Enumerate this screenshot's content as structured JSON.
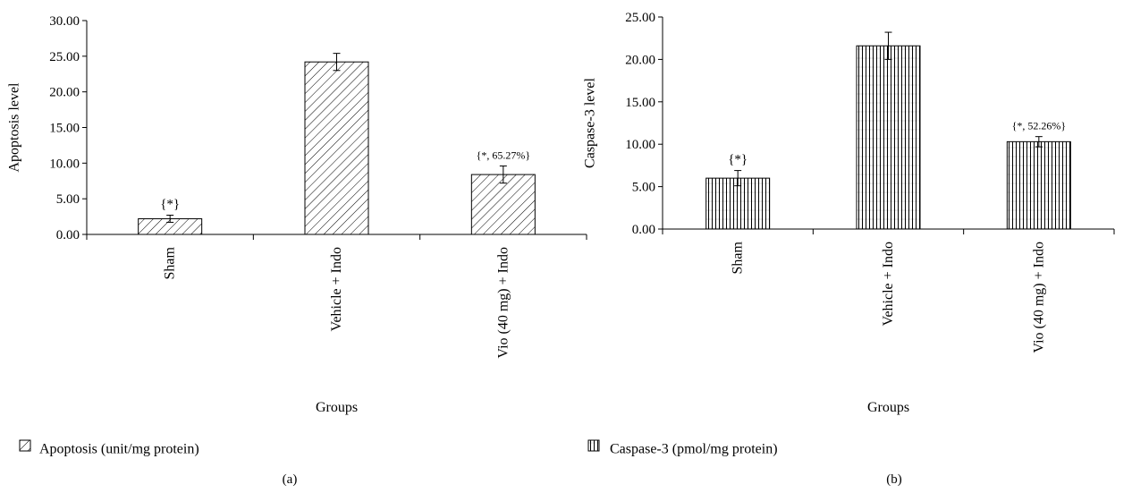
{
  "chart_data": [
    {
      "panel_label": "(a)",
      "type": "bar",
      "ylabel": "Apoptosis level",
      "xlabel": "Groups",
      "ylim": [
        0,
        30
      ],
      "ytick_step": 5,
      "ytick_labels": [
        "0.00",
        "5.00",
        "10.00",
        "15.00",
        "20.00",
        "25.00",
        "30.00"
      ],
      "categories": [
        "Sham",
        "Vehicle + Indo",
        "Vio (40 mg) + Indo"
      ],
      "series": [
        {
          "name": "Apoptosis (unit/mg protein)",
          "values": [
            2.2,
            24.2,
            8.4
          ],
          "errors": [
            0.5,
            1.2,
            1.2
          ]
        }
      ],
      "annotations": [
        "{*}",
        "",
        "{*, 65.27%}"
      ],
      "legend": "bottom-left",
      "pattern": "diagonal-hatch",
      "grid": false
    },
    {
      "panel_label": "(b)",
      "type": "bar",
      "ylabel": "Caspase-3 level",
      "xlabel": "Groups",
      "ylim": [
        0,
        25
      ],
      "ytick_step": 5,
      "ytick_labels": [
        "0.00",
        "5.00",
        "10.00",
        "15.00",
        "20.00",
        "25.00"
      ],
      "categories": [
        "Sham",
        "Vehicle + Indo",
        "Vio (40 mg) + Indo"
      ],
      "series": [
        {
          "name": "Caspase-3 (pmol/mg protein)",
          "values": [
            6.0,
            21.6,
            10.3
          ],
          "errors": [
            0.9,
            1.6,
            0.6
          ]
        }
      ],
      "annotations": [
        "{*}",
        "",
        "{*, 52.26%}"
      ],
      "legend": "bottom-left",
      "pattern": "vertical-lines",
      "grid": false
    }
  ]
}
